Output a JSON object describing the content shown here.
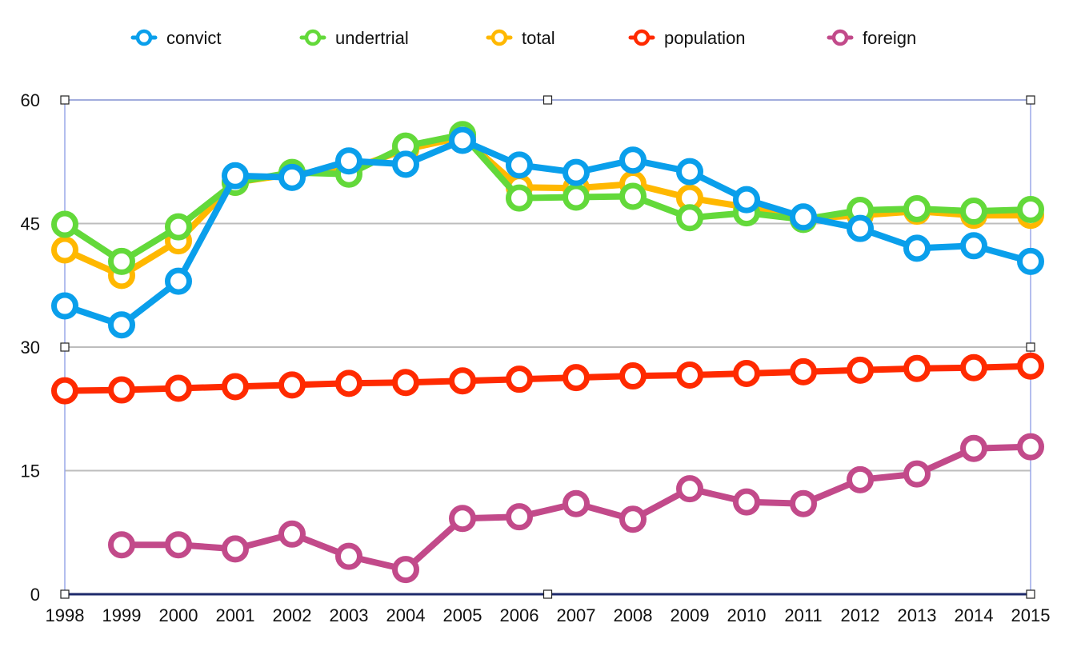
{
  "chart_data": {
    "type": "line",
    "title": "",
    "xlabel": "",
    "ylabel": "",
    "ylim": [
      0,
      60
    ],
    "yticks": [
      "0",
      "15",
      "30",
      "45",
      "60"
    ],
    "x": [
      "1998",
      "1999",
      "2000",
      "2001",
      "2002",
      "2003",
      "2004",
      "2005",
      "2006",
      "2007",
      "2008",
      "2009",
      "2010",
      "2011",
      "2012",
      "2013",
      "2014",
      "2015"
    ],
    "grid": true,
    "legend_position": "top",
    "series": [
      {
        "name": "total",
        "color": "#FFB800",
        "values": [
          41.8,
          38.7,
          42.9,
          50.0,
          51.0,
          51.5,
          54.0,
          55.5,
          49.4,
          49.3,
          49.8,
          48.1,
          47.0,
          45.6,
          46.0,
          46.5,
          46.0,
          46.0
        ]
      },
      {
        "name": "undertrial",
        "color": "#63D93A",
        "values": [
          44.9,
          40.4,
          44.6,
          50.0,
          51.2,
          51.0,
          54.4,
          55.8,
          48.1,
          48.2,
          48.3,
          45.7,
          46.3,
          45.5,
          46.6,
          46.8,
          46.5,
          46.7
        ]
      },
      {
        "name": "convict",
        "color": "#0A9FEB",
        "values": [
          35.0,
          32.7,
          38.0,
          50.8,
          50.6,
          52.6,
          52.2,
          55.1,
          52.1,
          51.2,
          52.7,
          51.3,
          47.9,
          45.8,
          44.4,
          42.0,
          42.3,
          40.4
        ]
      },
      {
        "name": "population",
        "color": "#FF2A00",
        "values": [
          24.7,
          24.8,
          25.0,
          25.2,
          25.4,
          25.6,
          25.7,
          25.9,
          26.1,
          26.3,
          26.5,
          26.6,
          26.8,
          27.0,
          27.2,
          27.4,
          27.5,
          27.7
        ]
      },
      {
        "name": "foreign",
        "color": "#C24A8A",
        "values": [
          null,
          6.0,
          6.0,
          5.5,
          7.3,
          4.6,
          3.0,
          9.2,
          9.4,
          11.0,
          9.1,
          12.8,
          11.2,
          11.0,
          13.9,
          14.6,
          17.7,
          17.9
        ]
      }
    ],
    "legend_order": [
      "convict",
      "undertrial",
      "total",
      "population",
      "foreign"
    ]
  }
}
